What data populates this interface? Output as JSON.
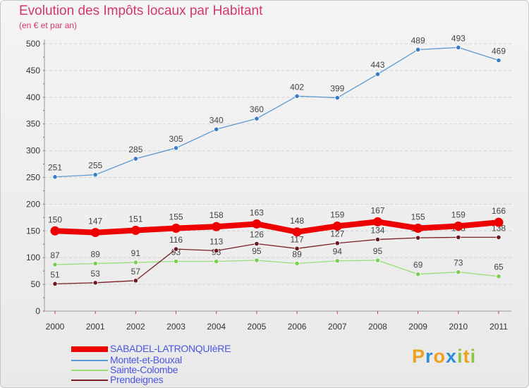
{
  "chart_data": {
    "type": "line",
    "title": "Evolution des Impôts locaux par Habitant",
    "subtitle": "(en € et par an)",
    "xlabel": "",
    "ylabel": "",
    "ylim": [
      0,
      500
    ],
    "yticks": [
      0,
      50,
      100,
      150,
      200,
      250,
      300,
      350,
      400,
      450,
      500
    ],
    "x": [
      "2000",
      "2001",
      "2002",
      "2003",
      "2004",
      "2005",
      "2006",
      "2007",
      "2008",
      "2009",
      "2010",
      "2011"
    ],
    "legend_position": "bottom-left",
    "series": [
      {
        "name": "Montet-et-Bouxal",
        "color": "#5b9bd5",
        "point_color": "#3a7cc4",
        "values": [
          251,
          255,
          285,
          305,
          340,
          360,
          402,
          399,
          443,
          489,
          493,
          469
        ],
        "labels": [
          "251",
          "255",
          "285",
          "305",
          "340",
          "360",
          "402",
          "399",
          "443",
          "489",
          "493",
          "469"
        ]
      },
      {
        "name": "Sainte-Colombe",
        "color": "#99dd77",
        "point_color": "#7ccc55",
        "values": [
          87,
          89,
          91,
          93,
          93,
          95,
          89,
          94,
          95,
          69,
          73,
          65
        ],
        "labels": [
          "87",
          "89",
          "91",
          "93",
          "93",
          "95",
          "89",
          "94",
          "95",
          "69",
          "73",
          "65"
        ]
      },
      {
        "name": "Prendeignes",
        "color": "#7a1f24",
        "point_color": "#6a1a1e",
        "values": [
          51,
          53,
          57,
          116,
          113,
          126,
          117,
          127,
          134,
          137,
          138,
          138
        ],
        "labels": [
          "51",
          "53",
          "57",
          "116",
          "113",
          "126",
          "117",
          "127",
          "134",
          "137",
          "138",
          "138"
        ]
      },
      {
        "name": "SABADEL-LATRONQUIèRE",
        "color": "#ee0000",
        "point_color": "#ee0000",
        "values": [
          150,
          147,
          151,
          155,
          158,
          163,
          148,
          159,
          167,
          155,
          159,
          166
        ],
        "labels": [
          "150",
          "147",
          "151",
          "155",
          "158",
          "163",
          "148",
          "159",
          "167",
          "155",
          "159",
          "166"
        ]
      }
    ]
  },
  "legend": {
    "items": [
      {
        "label": "SABADEL-LATRONQUIèRE",
        "color": "#ee0000"
      },
      {
        "label": "Montet-et-Bouxal",
        "color": "#5b9bd5"
      },
      {
        "label": "Sainte-Colombe",
        "color": "#99dd77"
      },
      {
        "label": "Prendeignes",
        "color": "#7a1f24"
      }
    ]
  },
  "logo": {
    "letters": [
      "P",
      "r",
      "o",
      "x",
      "i",
      "t",
      "i"
    ],
    "colors": [
      "#f0a020",
      "#2a8fd8",
      "#f0a020",
      "#2a8fd8",
      "#8cc63e",
      "#f0a020",
      "#8cc63e"
    ]
  }
}
